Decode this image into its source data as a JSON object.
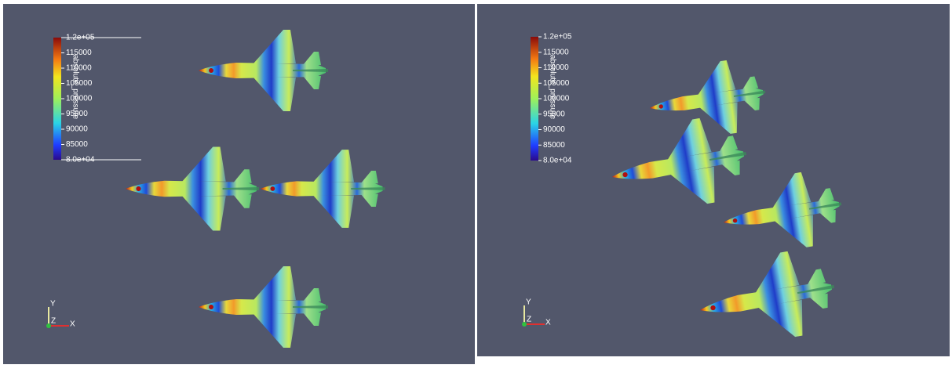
{
  "panels": [
    {
      "colorbar": {
        "title": "absolute_pressure",
        "labels": [
          "1.2e+05",
          "115000",
          "110000",
          "105000",
          "100000",
          "95000",
          "90000",
          "85000",
          "8.0e+04"
        ]
      },
      "axes": {
        "y": "Y",
        "z": "Z",
        "x": "X"
      }
    },
    {
      "colorbar": {
        "title": "absolute_pressure",
        "labels": [
          "1.2e+05",
          "115000",
          "110000",
          "105000",
          "100000",
          "95000",
          "90000",
          "85000",
          "8.0e+04"
        ]
      },
      "axes": {
        "y": "Y",
        "z": "Z",
        "x": "X"
      }
    }
  ]
}
